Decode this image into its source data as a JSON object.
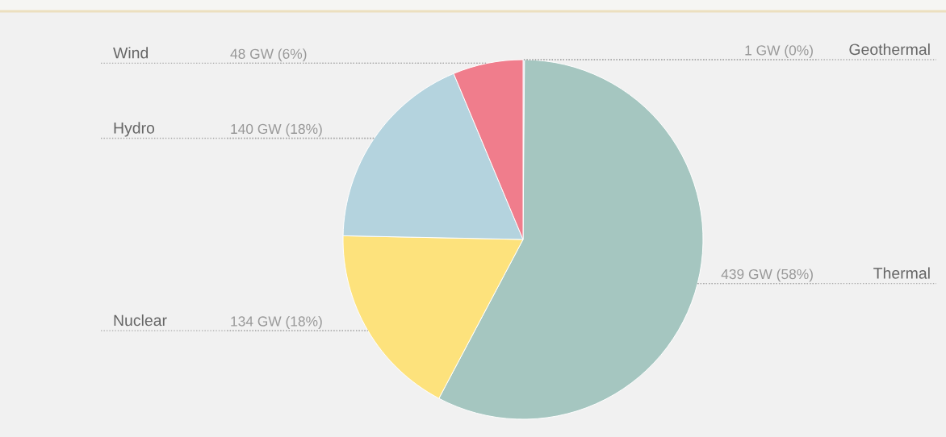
{
  "chart_data": {
    "type": "pie",
    "categories": [
      "Geothermal",
      "Thermal",
      "Nuclear",
      "Hydro",
      "Wind"
    ],
    "values": [
      1,
      439,
      134,
      140,
      48
    ],
    "colors": [
      "#c8b6d6",
      "#a5c6c0",
      "#fde27c",
      "#b4d3de",
      "#f07d8c"
    ],
    "value_labels": [
      "1 GW (0%)",
      "439 GW (58%)",
      "134 GW (18%)",
      "140 GW (18%)",
      "48 GW (6%)"
    ]
  }
}
